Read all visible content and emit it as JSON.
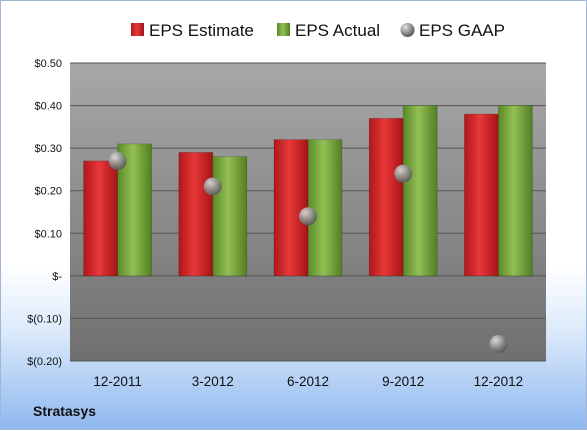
{
  "company_label": "Stratasys",
  "colors": {
    "estimate": "#d41f22",
    "actual": "#74a23a",
    "gaap": "#8d8d8d",
    "plot_top": "#a8a8a8",
    "plot_bottom": "#6f6f6f"
  },
  "chart_data": {
    "type": "bar",
    "categories": [
      "12-2011",
      "3-2012",
      "6-2012",
      "9-2012",
      "12-2012"
    ],
    "series": [
      {
        "name": "EPS Estimate",
        "type": "bar",
        "values": [
          0.27,
          0.29,
          0.32,
          0.37,
          0.38
        ]
      },
      {
        "name": "EPS Actual",
        "type": "bar",
        "values": [
          0.31,
          0.28,
          0.32,
          0.4,
          0.4
        ]
      },
      {
        "name": "EPS GAAP",
        "type": "scatter",
        "values": [
          0.27,
          0.21,
          0.14,
          0.24,
          -0.16
        ]
      }
    ],
    "yticks": [
      0.5,
      0.4,
      0.3,
      0.2,
      0.1,
      0,
      -0.1,
      -0.2
    ],
    "ytick_labels": [
      "$0.50",
      "$0.40",
      "$0.30",
      "$0.20",
      "$0.10",
      "$-",
      "$(0.10)",
      "$(0.20)"
    ],
    "ylim": [
      -0.2,
      0.5
    ],
    "grid": true,
    "legend_position": "top"
  }
}
